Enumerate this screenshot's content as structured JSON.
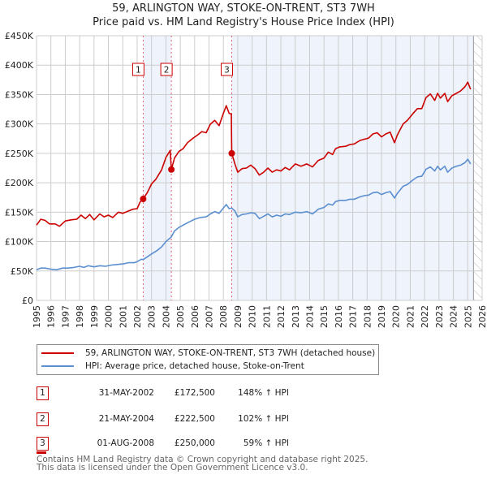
{
  "title_line1": "59, ARLINGTON WAY, STOKE-ON-TRENT, ST3 7WH",
  "title_line2": "Price paid vs. HM Land Registry's House Price Index (HPI)",
  "colors": {
    "property": "#cc0000",
    "hpi": "#5b8fd0",
    "shade": "#eef3fc",
    "grid": "#cccccc",
    "marker_line": "#e06070"
  },
  "chart_data": {
    "type": "line",
    "title": "59, ARLINGTON WAY, STOKE-ON-TRENT, ST3 7WH — Price paid vs. HM Land Registry's House Price Index (HPI)",
    "xlabel": "",
    "ylabel": "",
    "xlim": [
      1995,
      2026
    ],
    "ylim": [
      0,
      450000
    ],
    "x_ticks": [
      "1995",
      "1996",
      "1997",
      "1998",
      "1999",
      "2000",
      "2001",
      "2002",
      "2003",
      "2004",
      "2005",
      "2006",
      "2007",
      "2008",
      "2009",
      "2010",
      "2011",
      "2012",
      "2013",
      "2014",
      "2015",
      "2016",
      "2017",
      "2018",
      "2019",
      "2020",
      "2021",
      "2022",
      "2023",
      "2024",
      "2025",
      "2026"
    ],
    "y_ticks": [
      {
        "value": 0,
        "label": "£0"
      },
      {
        "value": 50000,
        "label": "£50K"
      },
      {
        "value": 100000,
        "label": "£100K"
      },
      {
        "value": 150000,
        "label": "£150K"
      },
      {
        "value": 200000,
        "label": "£200K"
      },
      {
        "value": 250000,
        "label": "£250K"
      },
      {
        "value": 300000,
        "label": "£300K"
      },
      {
        "value": 350000,
        "label": "£350K"
      },
      {
        "value": 400000,
        "label": "£400K"
      },
      {
        "value": 450000,
        "label": "£450K"
      }
    ],
    "grid": true,
    "legend_position": "below",
    "series": [
      {
        "name": "59, ARLINGTON WAY, STOKE-ON-TRENT, ST3 7WH (detached house)",
        "color": "#cc0000",
        "points": [
          [
            1995.0,
            128000
          ],
          [
            1995.3,
            138000
          ],
          [
            1995.6,
            136000
          ],
          [
            1995.9,
            130000
          ],
          [
            1996.3,
            130000
          ],
          [
            1996.6,
            126000
          ],
          [
            1997.0,
            135000
          ],
          [
            1997.4,
            137000
          ],
          [
            1997.8,
            138000
          ],
          [
            1998.1,
            145000
          ],
          [
            1998.4,
            139000
          ],
          [
            1998.7,
            146000
          ],
          [
            1999.0,
            137000
          ],
          [
            1999.4,
            147000
          ],
          [
            1999.7,
            142000
          ],
          [
            2000.0,
            145000
          ],
          [
            2000.3,
            141000
          ],
          [
            2000.7,
            150000
          ],
          [
            2001.0,
            148000
          ],
          [
            2001.4,
            152000
          ],
          [
            2001.7,
            155000
          ],
          [
            2002.0,
            156000
          ],
          [
            2002.2,
            167000
          ],
          [
            2002.42,
            172500
          ],
          [
            2002.7,
            183000
          ],
          [
            2003.0,
            198000
          ],
          [
            2003.3,
            206000
          ],
          [
            2003.7,
            222000
          ],
          [
            2004.0,
            243000
          ],
          [
            2004.3,
            255000
          ],
          [
            2004.38,
            222500
          ],
          [
            2004.6,
            242000
          ],
          [
            2004.9,
            253000
          ],
          [
            2005.2,
            258000
          ],
          [
            2005.5,
            268000
          ],
          [
            2005.9,
            276000
          ],
          [
            2006.2,
            281000
          ],
          [
            2006.5,
            287000
          ],
          [
            2006.8,
            285000
          ],
          [
            2007.1,
            300000
          ],
          [
            2007.4,
            306000
          ],
          [
            2007.7,
            297000
          ],
          [
            2008.0,
            318000
          ],
          [
            2008.2,
            331000
          ],
          [
            2008.4,
            318000
          ],
          [
            2008.55,
            317000
          ],
          [
            2008.58,
            250000
          ],
          [
            2008.8,
            232000
          ],
          [
            2009.0,
            218000
          ],
          [
            2009.3,
            224000
          ],
          [
            2009.6,
            225000
          ],
          [
            2009.9,
            230000
          ],
          [
            2010.2,
            224000
          ],
          [
            2010.5,
            213000
          ],
          [
            2010.8,
            218000
          ],
          [
            2011.1,
            225000
          ],
          [
            2011.4,
            218000
          ],
          [
            2011.7,
            222000
          ],
          [
            2012.0,
            220000
          ],
          [
            2012.3,
            226000
          ],
          [
            2012.6,
            222000
          ],
          [
            2013.0,
            232000
          ],
          [
            2013.4,
            228000
          ],
          [
            2013.8,
            232000
          ],
          [
            2014.2,
            227000
          ],
          [
            2014.6,
            238000
          ],
          [
            2015.0,
            242000
          ],
          [
            2015.3,
            252000
          ],
          [
            2015.6,
            248000
          ],
          [
            2015.8,
            258000
          ],
          [
            2016.1,
            261000
          ],
          [
            2016.5,
            262000
          ],
          [
            2016.8,
            265000
          ],
          [
            2017.1,
            266000
          ],
          [
            2017.5,
            272000
          ],
          [
            2017.8,
            274000
          ],
          [
            2018.1,
            276000
          ],
          [
            2018.4,
            283000
          ],
          [
            2018.7,
            285000
          ],
          [
            2019.0,
            278000
          ],
          [
            2019.3,
            283000
          ],
          [
            2019.6,
            286000
          ],
          [
            2019.9,
            268000
          ],
          [
            2020.1,
            281000
          ],
          [
            2020.5,
            300000
          ],
          [
            2020.8,
            306000
          ],
          [
            2021.2,
            318000
          ],
          [
            2021.5,
            326000
          ],
          [
            2021.8,
            326000
          ],
          [
            2022.1,
            345000
          ],
          [
            2022.4,
            351000
          ],
          [
            2022.7,
            340000
          ],
          [
            2022.9,
            352000
          ],
          [
            2023.1,
            344000
          ],
          [
            2023.4,
            352000
          ],
          [
            2023.6,
            338000
          ],
          [
            2023.9,
            348000
          ],
          [
            2024.2,
            352000
          ],
          [
            2024.5,
            356000
          ],
          [
            2024.8,
            363000
          ],
          [
            2025.0,
            371000
          ],
          [
            2025.2,
            359000
          ]
        ]
      },
      {
        "name": "HPI: Average price, detached house, Stoke-on-Trent",
        "color": "#5b8fd0",
        "points": [
          [
            1995.0,
            52000
          ],
          [
            1995.3,
            55000
          ],
          [
            1995.6,
            55000
          ],
          [
            1996.0,
            53000
          ],
          [
            1996.4,
            52000
          ],
          [
            1996.8,
            55000
          ],
          [
            1997.2,
            55000
          ],
          [
            1997.6,
            56000
          ],
          [
            1998.0,
            58000
          ],
          [
            1998.3,
            56000
          ],
          [
            1998.6,
            59000
          ],
          [
            1999.0,
            57000
          ],
          [
            1999.4,
            59000
          ],
          [
            1999.8,
            58000
          ],
          [
            2000.2,
            60000
          ],
          [
            2000.6,
            61000
          ],
          [
            2001.0,
            62000
          ],
          [
            2001.4,
            64000
          ],
          [
            2001.8,
            64000
          ],
          [
            2002.0,
            66000
          ],
          [
            2002.3,
            70000
          ],
          [
            2002.42,
            69500
          ],
          [
            2002.7,
            74000
          ],
          [
            2003.0,
            79000
          ],
          [
            2003.4,
            85000
          ],
          [
            2003.7,
            91000
          ],
          [
            2004.0,
            100000
          ],
          [
            2004.38,
            108000
          ],
          [
            2004.6,
            118000
          ],
          [
            2004.9,
            124000
          ],
          [
            2005.2,
            128000
          ],
          [
            2005.6,
            133000
          ],
          [
            2006.0,
            138000
          ],
          [
            2006.4,
            141000
          ],
          [
            2006.8,
            142000
          ],
          [
            2007.1,
            147000
          ],
          [
            2007.4,
            151000
          ],
          [
            2007.7,
            148000
          ],
          [
            2008.0,
            157000
          ],
          [
            2008.2,
            163000
          ],
          [
            2008.4,
            156000
          ],
          [
            2008.58,
            157000
          ],
          [
            2008.8,
            152000
          ],
          [
            2009.0,
            142000
          ],
          [
            2009.3,
            146000
          ],
          [
            2009.6,
            147000
          ],
          [
            2009.9,
            149000
          ],
          [
            2010.2,
            148000
          ],
          [
            2010.5,
            139000
          ],
          [
            2010.8,
            143000
          ],
          [
            2011.1,
            147000
          ],
          [
            2011.4,
            142000
          ],
          [
            2011.7,
            145000
          ],
          [
            2012.0,
            143000
          ],
          [
            2012.3,
            147000
          ],
          [
            2012.6,
            146000
          ],
          [
            2013.0,
            150000
          ],
          [
            2013.4,
            149000
          ],
          [
            2013.8,
            151000
          ],
          [
            2014.2,
            147000
          ],
          [
            2014.6,
            155000
          ],
          [
            2015.0,
            158000
          ],
          [
            2015.3,
            164000
          ],
          [
            2015.6,
            162000
          ],
          [
            2015.8,
            168000
          ],
          [
            2016.1,
            170000
          ],
          [
            2016.5,
            170000
          ],
          [
            2016.8,
            172000
          ],
          [
            2017.1,
            172000
          ],
          [
            2017.5,
            176000
          ],
          [
            2017.8,
            178000
          ],
          [
            2018.1,
            179000
          ],
          [
            2018.4,
            183000
          ],
          [
            2018.7,
            184000
          ],
          [
            2019.0,
            180000
          ],
          [
            2019.3,
            183000
          ],
          [
            2019.6,
            185000
          ],
          [
            2019.9,
            174000
          ],
          [
            2020.1,
            182000
          ],
          [
            2020.5,
            194000
          ],
          [
            2020.8,
            197000
          ],
          [
            2021.2,
            205000
          ],
          [
            2021.5,
            210000
          ],
          [
            2021.8,
            211000
          ],
          [
            2022.1,
            223000
          ],
          [
            2022.4,
            227000
          ],
          [
            2022.7,
            220000
          ],
          [
            2022.9,
            228000
          ],
          [
            2023.1,
            222000
          ],
          [
            2023.4,
            228000
          ],
          [
            2023.6,
            218000
          ],
          [
            2023.9,
            225000
          ],
          [
            2024.2,
            228000
          ],
          [
            2024.5,
            230000
          ],
          [
            2024.8,
            234000
          ],
          [
            2025.0,
            240000
          ],
          [
            2025.2,
            232000
          ]
        ]
      }
    ],
    "sales": [
      {
        "id": "1",
        "x": 2002.42,
        "price": 172500
      },
      {
        "id": "2",
        "x": 2004.38,
        "price": 222500
      },
      {
        "id": "3",
        "x": 2008.58,
        "price": 250000
      }
    ],
    "shaded_ranges": [
      [
        2002.42,
        2004.38
      ],
      [
        2008.58,
        2025.4
      ]
    ],
    "data_end": 2025.4
  },
  "legend": {
    "property_label": "59, ARLINGTON WAY, STOKE-ON-TRENT, ST3 7WH (detached house)",
    "hpi_label": "HPI: Average price, detached house, Stoke-on-Trent"
  },
  "transactions": [
    {
      "id": "1",
      "date": "31-MAY-2002",
      "price": "£172,500",
      "hpi": "148% ↑ HPI"
    },
    {
      "id": "2",
      "date": "21-MAY-2004",
      "price": "£222,500",
      "hpi": "102% ↑ HPI"
    },
    {
      "id": "3",
      "date": "01-AUG-2008",
      "price": "£250,000",
      "hpi": "59% ↑ HPI"
    }
  ],
  "footer": {
    "line1": "Contains HM Land Registry data © Crown copyright and database right 2025.",
    "line2": "This data is licensed under the Open Government Licence v3.0."
  }
}
